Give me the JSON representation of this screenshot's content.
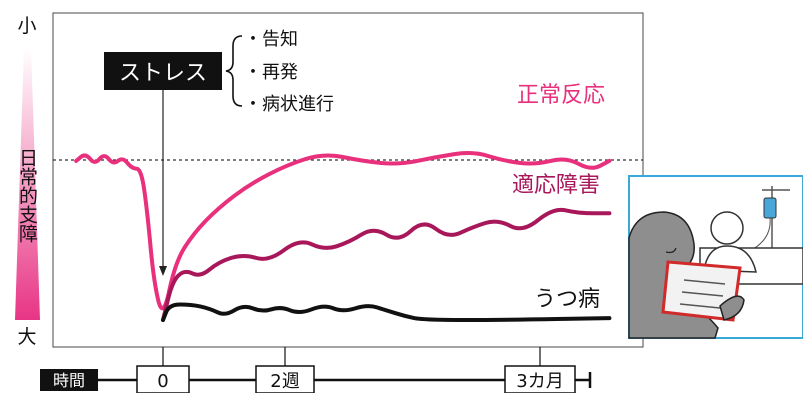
{
  "chart_data": {
    "type": "line",
    "title": "",
    "ylabel": "日常的支障",
    "y_top_label": "小",
    "y_bottom_label": "大",
    "xlabel": "時間",
    "x_ticks": [
      "0",
      "2週",
      "3カ月"
    ],
    "stressor": {
      "label": "ストレス",
      "items": [
        "・告知",
        "・再発",
        "・病状進行"
      ]
    },
    "series": [
      {
        "name": "正常反応",
        "color": "#e8307c",
        "points": [
          [
            -1.4,
            0.82
          ],
          [
            -1.25,
            0.86
          ],
          [
            -1.1,
            0.8
          ],
          [
            -0.95,
            0.86
          ],
          [
            -0.8,
            0.8
          ],
          [
            -0.65,
            0.84
          ],
          [
            -0.5,
            0.78
          ],
          [
            -0.35,
            0.78
          ],
          [
            -0.25,
            0.55
          ],
          [
            -0.15,
            0.2
          ],
          [
            0,
            0.0
          ],
          [
            0.2,
            0.3
          ],
          [
            0.5,
            0.45
          ],
          [
            0.9,
            0.58
          ],
          [
            1.4,
            0.7
          ],
          [
            2.0,
            0.8
          ],
          [
            2.6,
            0.86
          ],
          [
            3.2,
            0.82
          ],
          [
            3.8,
            0.8
          ],
          [
            4.4,
            0.84
          ],
          [
            5.0,
            0.87
          ],
          [
            5.5,
            0.82
          ],
          [
            6.0,
            0.8
          ],
          [
            6.5,
            0.84
          ],
          [
            6.9,
            0.77
          ],
          [
            7.2,
            0.82
          ]
        ]
      },
      {
        "name": "適応障害",
        "color": "#a8175a",
        "points": [
          [
            0,
            0.0
          ],
          [
            0.15,
            0.2
          ],
          [
            0.35,
            0.26
          ],
          [
            0.6,
            0.22
          ],
          [
            0.9,
            0.3
          ],
          [
            1.3,
            0.34
          ],
          [
            1.7,
            0.3
          ],
          [
            2.2,
            0.42
          ],
          [
            2.6,
            0.36
          ],
          [
            3.0,
            0.4
          ],
          [
            3.4,
            0.48
          ],
          [
            3.8,
            0.4
          ],
          [
            4.2,
            0.52
          ],
          [
            4.6,
            0.42
          ],
          [
            5.0,
            0.48
          ],
          [
            5.4,
            0.52
          ],
          [
            5.8,
            0.45
          ],
          [
            6.3,
            0.58
          ],
          [
            6.7,
            0.55
          ],
          [
            7.2,
            0.55
          ]
        ]
      },
      {
        "name": "うつ病",
        "color": "#111111",
        "points": [
          [
            0,
            0.0
          ],
          [
            0.1,
            0.08
          ],
          [
            0.45,
            0.08
          ],
          [
            0.75,
            0.06
          ],
          [
            1.0,
            0.02
          ],
          [
            1.3,
            0.08
          ],
          [
            1.6,
            0.04
          ],
          [
            1.9,
            0.07
          ],
          [
            2.2,
            0.03
          ],
          [
            2.6,
            0.08
          ],
          [
            2.9,
            0.04
          ],
          [
            3.3,
            0.08
          ],
          [
            3.6,
            0.05
          ],
          [
            3.9,
            0.02
          ],
          [
            4.2,
            0.0
          ],
          [
            5.5,
            0.0
          ],
          [
            7.2,
            0.01
          ]
        ]
      }
    ]
  }
}
